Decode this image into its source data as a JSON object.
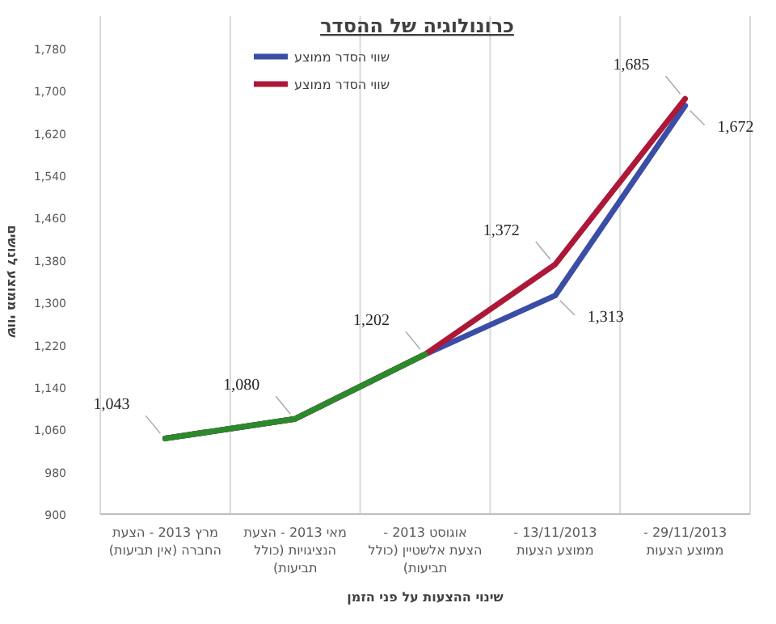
{
  "chart_data": {
    "type": "line",
    "title": "כרונולוגיה של ההסדר",
    "xlabel": "שינוי ההצעות על פני הזמן",
    "ylabel": "שווי ממוצע לנושים",
    "categories": [
      "מרץ 2013 - הצעת החברה (אין תביעות)",
      "מאי 2013 - הצעת הנציגויות (כולל תביעות)",
      "אוגוסט 2013 - הצעת אלשטיין (כולל תביעות)",
      "13/11/2013 - ממוצע הצעות",
      "29/11/2013 - ממוצע הצעות"
    ],
    "series": [
      {
        "name": "שווי הסדר ממוצע",
        "color": "#3b4ea6",
        "values": [
          1043,
          1080,
          1202,
          1313,
          1672
        ],
        "value_labels": [
          null,
          null,
          null,
          "1,313",
          "1,672"
        ]
      },
      {
        "name": "שווי הסדר ממוצע",
        "color": "#ad1838",
        "values": [
          1043,
          1080,
          1202,
          1372,
          1685
        ],
        "value_labels": [
          null,
          null,
          null,
          "1,372",
          "1,685"
        ]
      },
      {
        "color": "#2b8a2b",
        "values": [
          1043,
          1080,
          1202,
          null,
          null
        ],
        "value_labels": [
          "1,043",
          "1,080",
          "1,202",
          null,
          null
        ]
      }
    ],
    "ylim": [
      900,
      1780
    ],
    "yticks": [
      {
        "value": 900,
        "label": "900"
      },
      {
        "value": 980,
        "label": "980"
      },
      {
        "value": 1060,
        "label": "1,060"
      },
      {
        "value": 1140,
        "label": "1,140"
      },
      {
        "value": 1220,
        "label": "1,220"
      },
      {
        "value": 1300,
        "label": "1,300"
      },
      {
        "value": 1380,
        "label": "1,380"
      },
      {
        "value": 1460,
        "label": "1,460"
      },
      {
        "value": 1540,
        "label": "1,540"
      },
      {
        "value": 1620,
        "label": "1,620"
      },
      {
        "value": 1700,
        "label": "1,700"
      },
      {
        "value": 1780,
        "label": "1,780"
      }
    ],
    "grid": "x",
    "legend": "top",
    "marker": "none",
    "line_style": "solid"
  }
}
